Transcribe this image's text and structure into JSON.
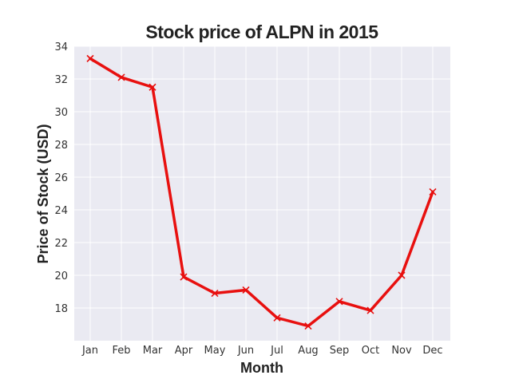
{
  "chart_data": {
    "type": "line",
    "title": "Stock price of ALPN in 2015",
    "xlabel": "Month",
    "ylabel": "Price of Stock (USD)",
    "categories": [
      "Jan",
      "Feb",
      "Mar",
      "Apr",
      "May",
      "Jun",
      "Jul",
      "Aug",
      "Sep",
      "Oct",
      "Nov",
      "Dec"
    ],
    "series": [
      {
        "values": [
          33.25,
          32.1,
          31.5,
          19.9,
          18.9,
          19.1,
          17.4,
          16.9,
          18.4,
          17.85,
          20.0,
          25.1
        ],
        "color": "#e8100f",
        "marker": "x"
      }
    ],
    "ylim": [
      16.0,
      34.0
    ],
    "yticks": [
      18,
      20,
      22,
      24,
      26,
      28,
      30,
      32,
      34
    ],
    "grid": true,
    "background_color": "#eaeaf2",
    "grid_color": "#ffffff"
  }
}
